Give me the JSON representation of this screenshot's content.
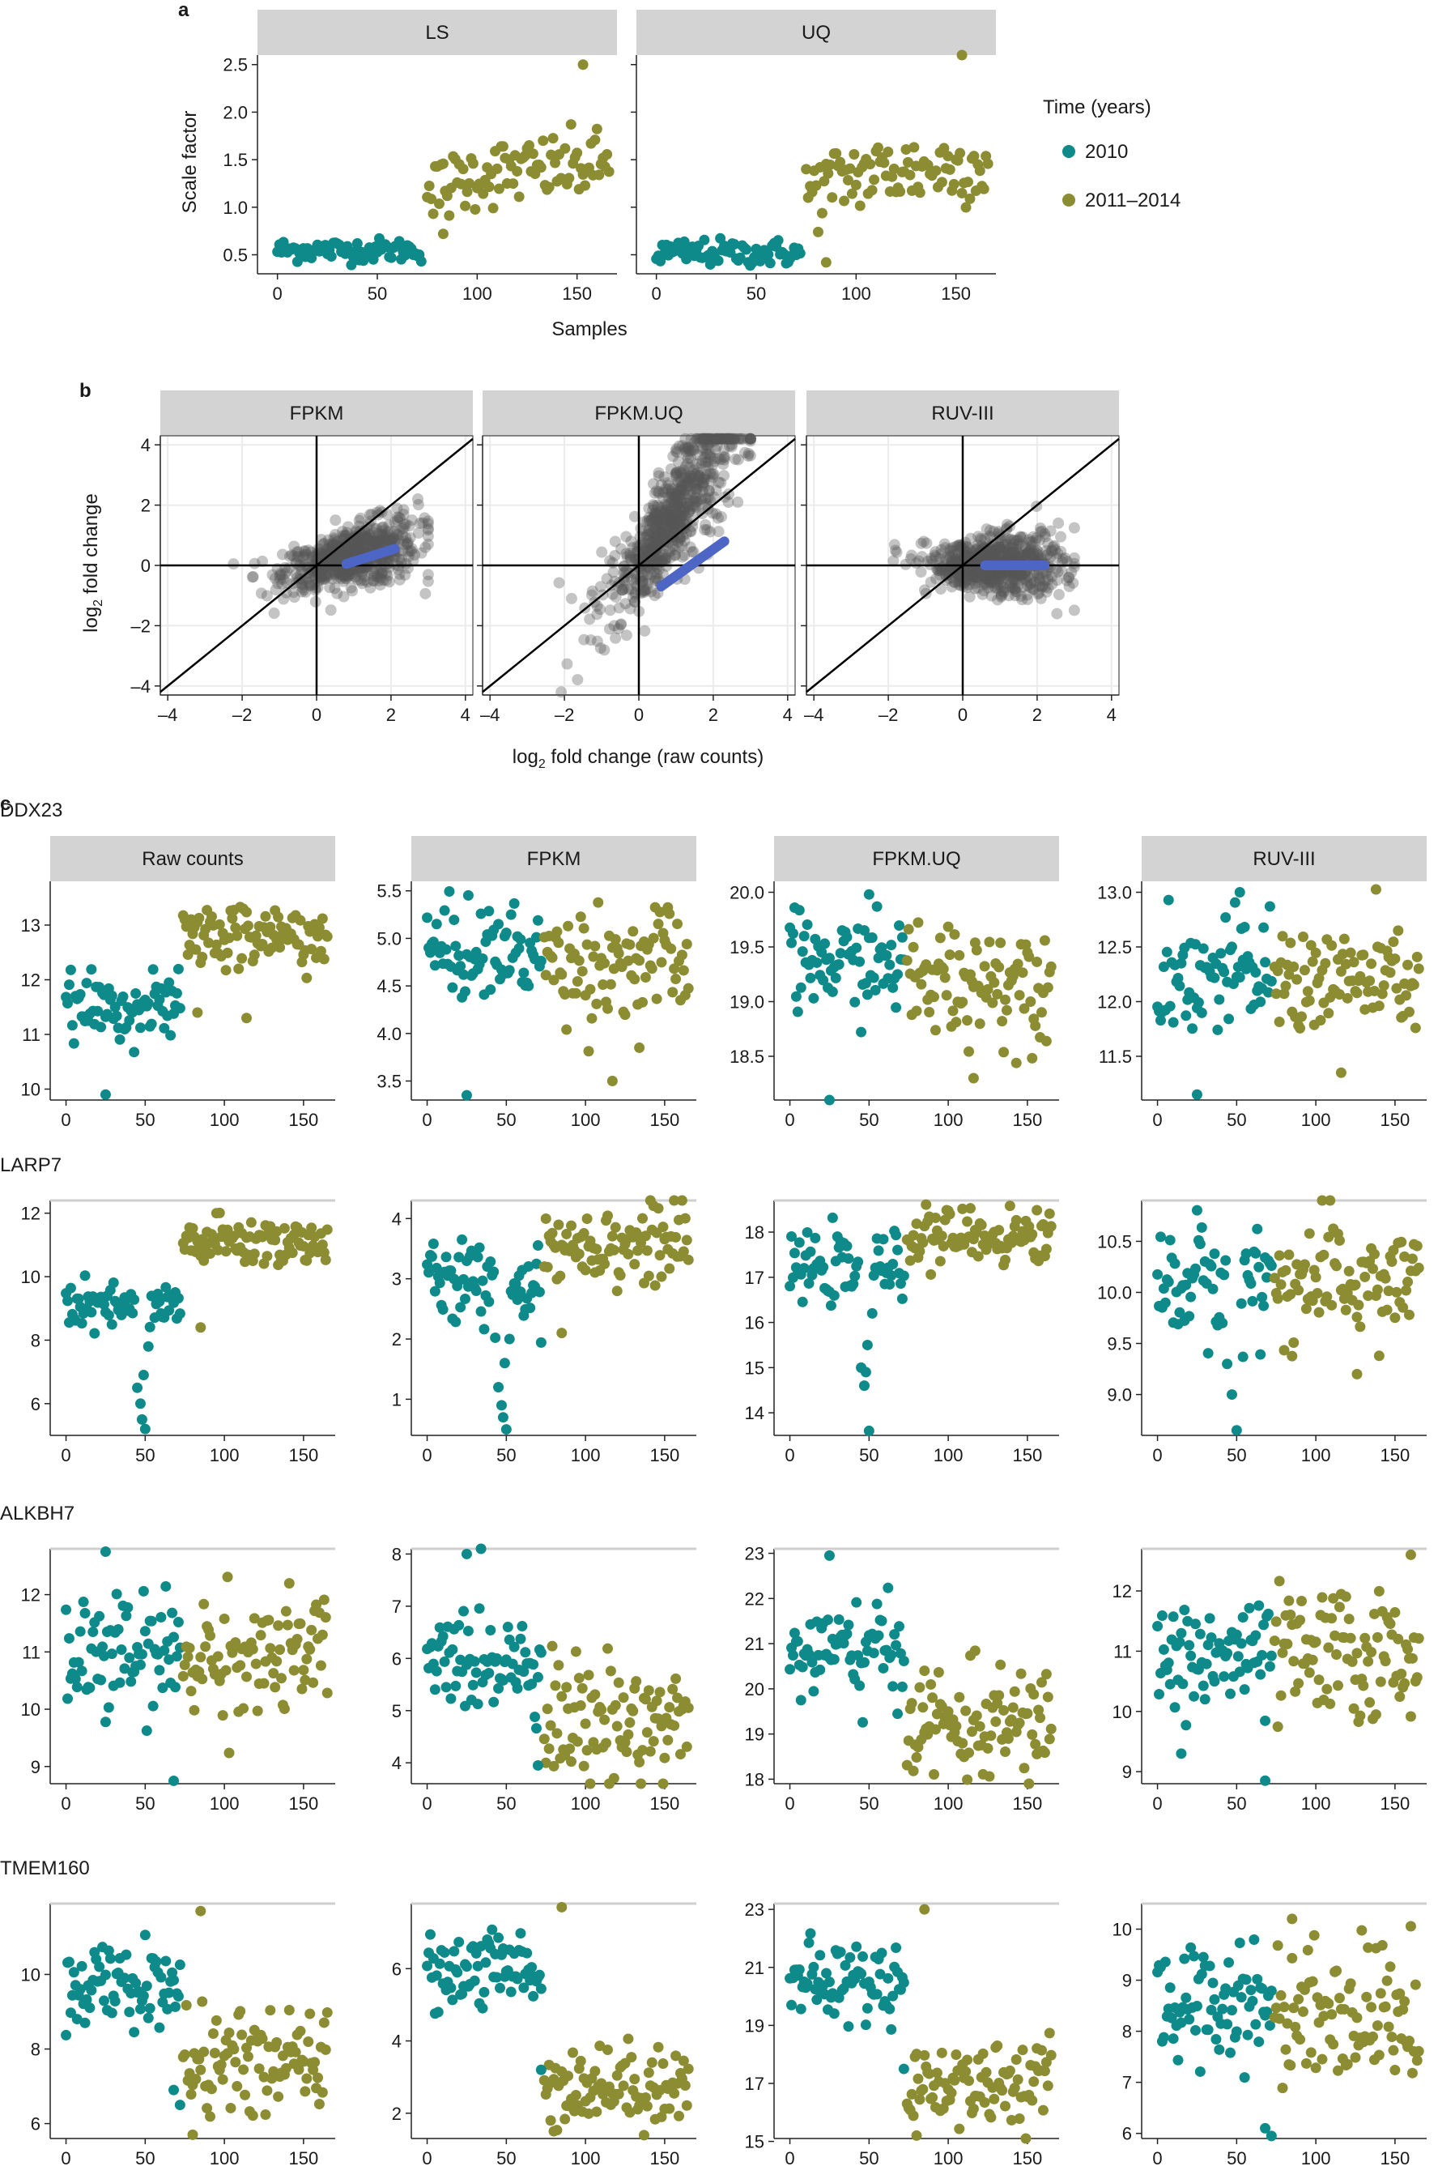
{
  "panel_labels": {
    "a": "a",
    "b": "b",
    "c": "c"
  },
  "colors": {
    "teal": "#0e8a8a",
    "olive": "#8c8c32",
    "strip": "#d3d3d3",
    "smooth": "#4d65c4",
    "points_b": "#555555"
  },
  "legend": {
    "title": "Time (years)",
    "items": [
      "2010",
      "2011–2014"
    ]
  },
  "chart_data": [
    {
      "id": "a",
      "type": "scatter",
      "ylabel": "Scale factor",
      "xlabel": "Samples",
      "xlim": [
        -10,
        170
      ],
      "ylim": [
        0.3,
        2.6
      ],
      "xticks": [
        0,
        50,
        100,
        150
      ],
      "yticks": [
        0.5,
        1.0,
        1.5,
        2.0,
        2.5
      ],
      "ytick_labels": [
        "0.5",
        "1.0",
        "1.5",
        "2.0",
        "2.5"
      ],
      "facets": [
        {
          "name": "LS",
          "series": [
            {
              "name": "2010",
              "color": "teal",
              "n": 73,
              "x_range": [
                0,
                72
              ],
              "mean": 0.55,
              "sd": 0.06
            },
            {
              "name": "2011–2014",
              "color": "olive",
              "n": 92,
              "x_range": [
                75,
                166
              ],
              "trend": [
                [
                  75,
                  1.12
                ],
                [
                  100,
                  1.35
                ],
                [
                  166,
                  1.45
                ]
              ],
              "sd": 0.18
            }
          ],
          "outliers": [
            [
              153,
              2.5
            ],
            [
              83,
              0.72
            ]
          ]
        },
        {
          "name": "UQ",
          "series": [
            {
              "name": "2010",
              "color": "teal",
              "n": 73,
              "x_range": [
                0,
                72
              ],
              "mean": 0.52,
              "sd": 0.07
            },
            {
              "name": "2011–2014",
              "color": "olive",
              "n": 92,
              "x_range": [
                75,
                166
              ],
              "trend": [
                [
                  75,
                  1.15
                ],
                [
                  100,
                  1.35
                ],
                [
                  166,
                  1.45
                ]
              ],
              "sd": 0.2
            }
          ],
          "outliers": [
            [
              153,
              2.6
            ],
            [
              85,
              0.42
            ]
          ]
        }
      ]
    },
    {
      "id": "b",
      "type": "scatter",
      "xlabel": "log2 fold change (raw counts)",
      "ylabel": "log2 fold change",
      "xlim": [
        -4.2,
        4.2
      ],
      "ylim": [
        -4.3,
        4.3
      ],
      "xticks": [
        -4,
        -2,
        0,
        2,
        4
      ],
      "yticks": [
        -4,
        -2,
        0,
        2,
        4
      ],
      "xtick_labels": [
        "–4",
        "–2",
        "0",
        "2",
        "4"
      ],
      "ytick_labels": [
        "–4",
        "–2",
        "0",
        "2",
        "4"
      ],
      "facets": [
        {
          "name": "FPKM",
          "slope": 0.3,
          "spread": 0.35,
          "smooth": [
            [
              0.8,
              0.05
            ],
            [
              2.1,
              0.55
            ]
          ]
        },
        {
          "name": "FPKM.UQ",
          "slope": 1.3,
          "spread": 0.6,
          "smooth": [
            [
              0.6,
              -0.7
            ],
            [
              2.3,
              0.8
            ]
          ]
        },
        {
          "name": "RUV-III",
          "slope": 0.0,
          "spread": 0.35,
          "smooth": [
            [
              0.6,
              0.0
            ],
            [
              2.2,
              0.0
            ]
          ]
        }
      ]
    },
    {
      "id": "c",
      "type": "scatter",
      "xlim": [
        -10,
        170
      ],
      "xticks": [
        0,
        50,
        100,
        150
      ],
      "columns": [
        "Raw counts",
        "FPKM",
        "FPKM.UQ",
        "RUV-III"
      ],
      "genes": [
        {
          "name": "DDX23",
          "panels": [
            {
              "ylim": [
                9.8,
                13.8
              ],
              "yticks": [
                10,
                11,
                12,
                13
              ],
              "ytick_labels": [
                "10",
                "11",
                "12",
                "13"
              ],
              "m2010": 11.5,
              "s2010": 0.28,
              "mlate": 12.8,
              "slate": 0.32,
              "outliers": [
                [
                  25,
                  9.9
                ],
                [
                  114,
                  11.3
                ],
                [
                  83,
                  11.4
                ]
              ]
            },
            {
              "ylim": [
                3.3,
                5.6
              ],
              "yticks": [
                3.5,
                4.0,
                4.5,
                5.0,
                5.5
              ],
              "ytick_labels": [
                "3.5",
                "4.0",
                "4.5",
                "5.0",
                "5.5"
              ],
              "m2010": 4.85,
              "s2010": 0.25,
              "mlate": 4.75,
              "slate": 0.3,
              "outliers": [
                [
                  25,
                  3.35
                ],
                [
                  117,
                  3.5
                ],
                [
                  134,
                  3.85
                ]
              ]
            },
            {
              "ylim": [
                18.1,
                20.1
              ],
              "yticks": [
                18.5,
                19.0,
                19.5,
                20.0
              ],
              "ytick_labels": [
                "18.5",
                "19.0",
                "19.5",
                "20.0"
              ],
              "m2010": 19.35,
              "s2010": 0.22,
              "mlate": 19.2,
              "slate": 0.28,
              "outliers": [
                [
                  25,
                  18.1
                ],
                [
                  116,
                  18.3
                ],
                [
                  50,
                  19.98
                ]
              ]
            },
            {
              "ylim": [
                11.1,
                13.1
              ],
              "yticks": [
                11.5,
                12.0,
                12.5,
                13.0
              ],
              "ytick_labels": [
                "11.5",
                "12.0",
                "12.5",
                "13.0"
              ],
              "m2010": 12.25,
              "s2010": 0.25,
              "mlate": 12.2,
              "slate": 0.25,
              "outliers": [
                [
                  25,
                  11.15
                ],
                [
                  116,
                  11.35
                ],
                [
                  52,
                  13.0
                ]
              ]
            }
          ]
        },
        {
          "name": "LARP7",
          "panels": [
            {
              "ylim": [
                5,
                12.4
              ],
              "yticks": [
                6,
                8,
                10,
                12
              ],
              "ytick_labels": [
                "6",
                "8",
                "10",
                "12"
              ],
              "m2010": 9.0,
              "s2010": 0.4,
              "mlate": 11.1,
              "slate": 0.4,
              "dip": [
                [
                  45,
                  6.5
                ],
                [
                  47,
                  6.0
                ],
                [
                  48,
                  5.5
                ],
                [
                  50,
                  5.2
                ],
                [
                  52,
                  7.8
                ],
                [
                  49,
                  6.9
                ]
              ],
              "outliers": [
                [
                  85,
                  8.4
                ]
              ]
            },
            {
              "ylim": [
                0.4,
                4.3
              ],
              "yticks": [
                1,
                2,
                3,
                4
              ],
              "ytick_labels": [
                "1",
                "2",
                "3",
                "4"
              ],
              "m2010": 2.9,
              "s2010": 0.35,
              "mlate": 3.6,
              "slate": 0.35,
              "dip": [
                [
                  45,
                  1.2
                ],
                [
                  47,
                  0.9
                ],
                [
                  48,
                  0.7
                ],
                [
                  50,
                  0.5
                ],
                [
                  52,
                  2.0
                ],
                [
                  49,
                  1.6
                ]
              ],
              "outliers": [
                [
                  85,
                  2.1
                ]
              ]
            },
            {
              "ylim": [
                13.5,
                18.7
              ],
              "yticks": [
                14,
                15,
                16,
                17,
                18
              ],
              "ytick_labels": [
                "14",
                "15",
                "16",
                "17",
                "18"
              ],
              "m2010": 17.2,
              "s2010": 0.35,
              "mlate": 17.9,
              "slate": 0.3,
              "dip": [
                [
                  45,
                  15.0
                ],
                [
                  47,
                  14.6
                ],
                [
                  48,
                  14.9
                ],
                [
                  50,
                  13.6
                ],
                [
                  52,
                  16.2
                ],
                [
                  49,
                  15.5
                ]
              ],
              "outliers": []
            },
            {
              "ylim": [
                8.6,
                10.9
              ],
              "yticks": [
                9.0,
                9.5,
                10.0,
                10.5
              ],
              "ytick_labels": [
                "9.0",
                "9.5",
                "10.0",
                "10.5"
              ],
              "m2010": 10.1,
              "s2010": 0.3,
              "mlate": 10.1,
              "slate": 0.3,
              "dip": [
                [
                  47,
                  9.0
                ],
                [
                  50,
                  8.65
                ],
                [
                  44,
                  9.3
                ]
              ],
              "outliers": [
                [
                  126,
                  9.2
                ]
              ]
            }
          ]
        },
        {
          "name": "ALKBH7",
          "panels": [
            {
              "ylim": [
                8.7,
                12.8
              ],
              "yticks": [
                9,
                10,
                11,
                12
              ],
              "ytick_labels": [
                "9",
                "10",
                "11",
                "12"
              ],
              "m2010": 10.9,
              "s2010": 0.55,
              "mlate": 10.9,
              "slate": 0.55,
              "outliers": [
                [
                  68,
                  8.75
                ],
                [
                  25,
                  12.75
                ]
              ]
            },
            {
              "ylim": [
                3.6,
                8.1
              ],
              "yticks": [
                4,
                5,
                6,
                7,
                8
              ],
              "ytick_labels": [
                "4",
                "5",
                "6",
                "7",
                "8"
              ],
              "m2010": 6.0,
              "s2010": 0.5,
              "mlate": 4.8,
              "slate": 0.6,
              "outliers": [
                [
                  25,
                  8.0
                ],
                [
                  70,
                  3.95
                ]
              ]
            },
            {
              "ylim": [
                17.9,
                23.1
              ],
              "yticks": [
                18,
                19,
                20,
                21,
                22,
                23
              ],
              "ytick_labels": [
                "18",
                "19",
                "20",
                "21",
                "22",
                "23"
              ],
              "m2010": 20.8,
              "s2010": 0.55,
              "mlate": 19.2,
              "slate": 0.6,
              "outliers": [
                [
                  25,
                  22.95
                ],
                [
                  85,
                  20.4
                ]
              ]
            },
            {
              "ylim": [
                8.8,
                12.7
              ],
              "yticks": [
                9,
                10,
                11,
                12
              ],
              "ytick_labels": [
                "9",
                "10",
                "11",
                "12"
              ],
              "m2010": 10.9,
              "s2010": 0.5,
              "mlate": 10.9,
              "slate": 0.55,
              "outliers": [
                [
                  68,
                  8.85
                ],
                [
                  15,
                  9.3
                ],
                [
                  160,
                  12.6
                ]
              ]
            }
          ]
        },
        {
          "name": "TMEM160",
          "panels": [
            {
              "ylim": [
                5.6,
                11.9
              ],
              "yticks": [
                6,
                8,
                10
              ],
              "ytick_labels": [
                "6",
                "8",
                "10"
              ],
              "m2010": 9.7,
              "s2010": 0.55,
              "mlate": 7.6,
              "slate": 0.65,
              "outliers": [
                [
                  85,
                  11.7
                ],
                [
                  72,
                  6.5
                ],
                [
                  68,
                  6.9
                ],
                [
                  80,
                  5.7
                ]
              ]
            },
            {
              "ylim": [
                1.3,
                7.8
              ],
              "yticks": [
                2,
                4,
                6
              ],
              "ytick_labels": [
                "2",
                "4",
                "6"
              ],
              "m2010": 6.0,
              "s2010": 0.55,
              "mlate": 2.8,
              "slate": 0.55,
              "outliers": [
                [
                  85,
                  7.7
                ],
                [
                  72,
                  3.2
                ],
                [
                  80,
                  1.5
                ]
              ]
            },
            {
              "ylim": [
                15.1,
                23.2
              ],
              "yticks": [
                15,
                17,
                19,
                21,
                23
              ],
              "ytick_labels": [
                "15",
                "17",
                "19",
                "21",
                "23"
              ],
              "m2010": 20.5,
              "s2010": 0.7,
              "mlate": 17.0,
              "slate": 0.7,
              "outliers": [
                [
                  85,
                  23.0
                ],
                [
                  72,
                  17.5
                ],
                [
                  80,
                  15.2
                ]
              ]
            },
            {
              "ylim": [
                5.9,
                10.5
              ],
              "yticks": [
                6,
                7,
                8,
                9,
                10
              ],
              "ytick_labels": [
                "6",
                "7",
                "8",
                "9",
                "10"
              ],
              "m2010": 8.6,
              "s2010": 0.6,
              "mlate": 8.4,
              "slate": 0.7,
              "outliers": [
                [
                  68,
                  6.1
                ],
                [
                  72,
                  5.95
                ],
                [
                  85,
                  10.2
                ]
              ]
            }
          ]
        }
      ]
    }
  ]
}
